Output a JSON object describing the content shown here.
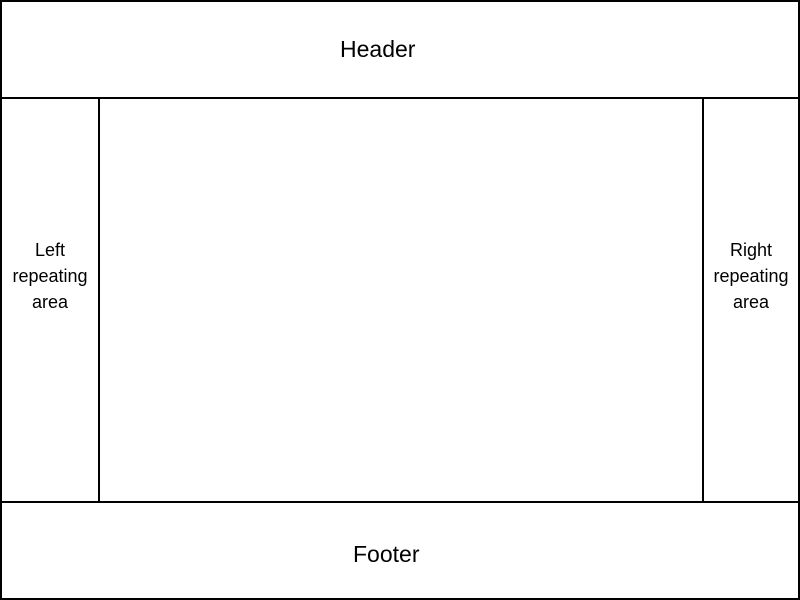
{
  "diagram": {
    "header": {
      "label": "Header"
    },
    "left_area": {
      "lines": [
        "Left",
        "repeating",
        "area"
      ]
    },
    "right_area": {
      "lines": [
        "Right",
        "repeating",
        "area"
      ]
    },
    "footer": {
      "label": "Footer"
    },
    "colors": {
      "border": "#000000",
      "background": "#ffffff",
      "text": "#000000"
    }
  }
}
